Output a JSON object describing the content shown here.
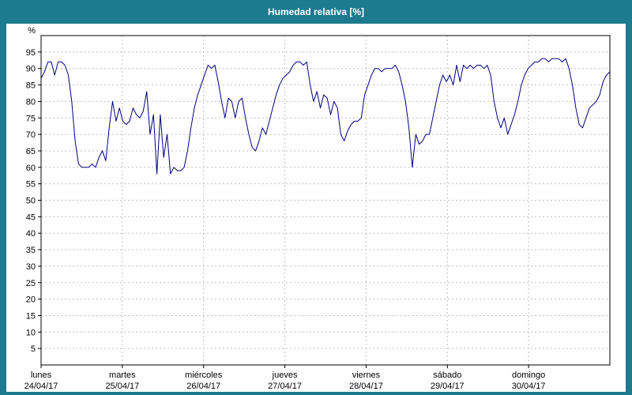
{
  "theme": {
    "frame_color": "#1d7a8f",
    "panel_color": "#ffffff",
    "title_text_color": "#ffffff",
    "axis_text_color": "#000000",
    "grid_color": "#bfbfbf",
    "line_color": "#000080"
  },
  "chart_data": {
    "type": "line",
    "title": "Humedad relativa [%]",
    "ylabel": "%",
    "xlabel": "",
    "ylim": [
      0,
      100
    ],
    "ytick_step": 5,
    "yticks": [
      5,
      10,
      15,
      20,
      25,
      30,
      35,
      40,
      45,
      50,
      55,
      60,
      65,
      70,
      75,
      80,
      85,
      90,
      95
    ],
    "grid": true,
    "legend_position": "none",
    "x_unit": "hour",
    "days": [
      {
        "name": "lunes",
        "date": "24/04/17"
      },
      {
        "name": "martes",
        "date": "25/04/17"
      },
      {
        "name": "miércoles",
        "date": "26/04/17"
      },
      {
        "name": "jueves",
        "date": "27/04/17"
      },
      {
        "name": "viernes",
        "date": "28/04/17"
      },
      {
        "name": "sábado",
        "date": "29/04/17"
      },
      {
        "name": "domingo",
        "date": "30/04/17"
      }
    ],
    "series": [
      {
        "name": "Humedad relativa",
        "color": "#000080",
        "values": [
          87,
          89,
          92,
          92,
          88,
          92,
          92,
          91,
          88,
          80,
          68,
          61,
          60,
          60,
          60,
          61,
          60,
          63,
          65,
          62,
          72,
          80,
          74,
          78,
          74,
          73,
          74,
          78,
          76,
          75,
          77,
          83,
          70,
          76,
          58,
          76,
          63,
          70,
          58,
          60,
          59,
          59,
          60,
          65,
          72,
          78,
          82,
          85,
          88,
          91,
          90,
          91,
          86,
          80,
          75,
          81,
          80,
          75,
          80,
          81,
          75,
          70,
          66,
          65,
          68,
          72,
          70,
          74,
          78,
          82,
          85,
          87,
          88,
          89,
          91,
          92,
          92,
          91,
          92,
          85,
          80,
          83,
          78,
          82,
          81,
          76,
          80,
          78,
          70,
          68,
          71,
          73,
          74,
          74,
          75,
          82,
          85,
          88,
          90,
          90,
          89,
          90,
          90,
          90,
          91,
          89,
          85,
          80,
          72,
          60,
          70,
          67,
          68,
          70,
          70,
          75,
          80,
          85,
          88,
          86,
          88,
          85,
          91,
          86,
          91,
          90,
          91,
          90,
          91,
          91,
          90,
          91,
          88,
          80,
          75,
          72,
          75,
          70,
          73,
          76,
          80,
          85,
          88,
          90,
          91,
          92,
          92,
          93,
          93,
          92,
          93,
          93,
          93,
          92,
          93,
          90,
          85,
          78,
          73,
          72,
          75,
          78,
          79,
          80,
          82,
          86,
          88,
          89
        ]
      }
    ]
  }
}
